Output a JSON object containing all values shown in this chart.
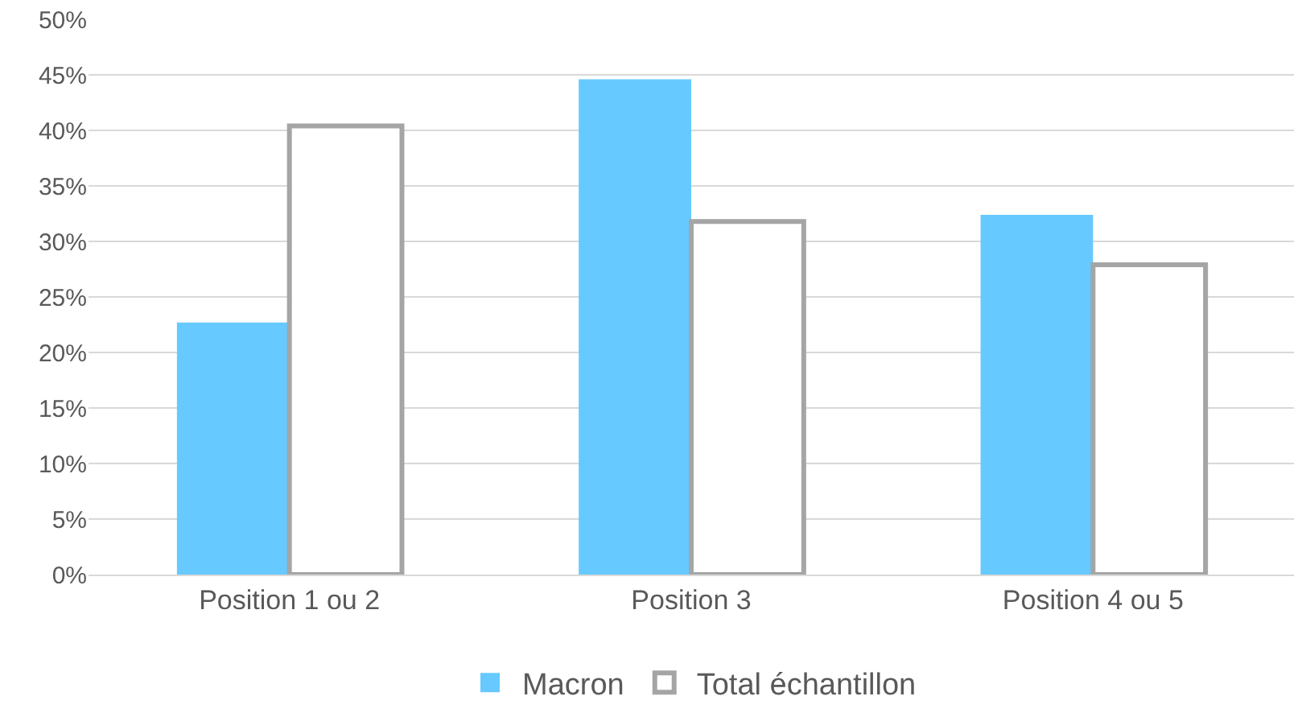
{
  "chart_data": {
    "type": "bar",
    "categories": [
      "Position 1 ou 2",
      "Position 3",
      "Position 4 ou 5"
    ],
    "series": [
      {
        "name": "Macron",
        "color": "#66c9ff",
        "values": [
          22.7,
          44.6,
          32.4
        ]
      },
      {
        "name": "Total échantillon",
        "color": "#ffffff",
        "values": [
          40.4,
          31.8,
          27.9
        ]
      }
    ],
    "ylim": [
      0,
      50
    ],
    "yticks": [
      {
        "value": 0,
        "label": "0%"
      },
      {
        "value": 5,
        "label": "5%"
      },
      {
        "value": 10,
        "label": "10%"
      },
      {
        "value": 15,
        "label": "15%"
      },
      {
        "value": 20,
        "label": "20%"
      },
      {
        "value": 25,
        "label": "25%"
      },
      {
        "value": 30,
        "label": "30%"
      },
      {
        "value": 35,
        "label": "35%"
      },
      {
        "value": 40,
        "label": "40%"
      },
      {
        "value": 45,
        "label": "45%"
      },
      {
        "value": 50,
        "label": "50%"
      }
    ],
    "grid": "y",
    "legend": "bottom"
  }
}
